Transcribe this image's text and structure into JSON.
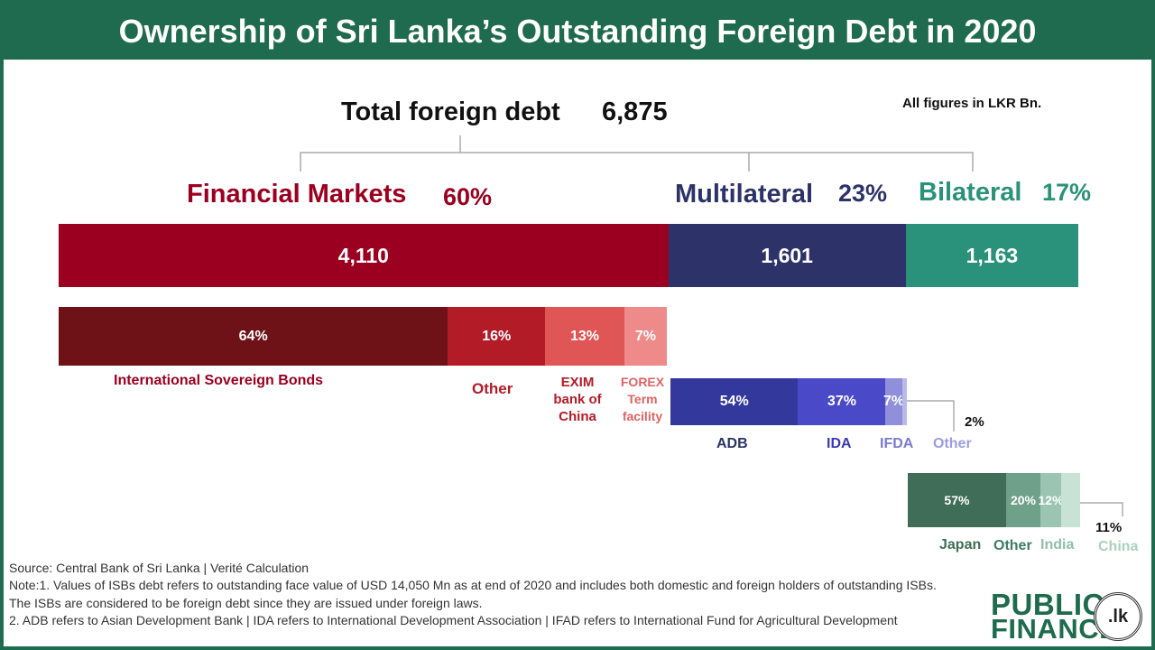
{
  "title": "Ownership of Sri Lanka’s Outstanding Foreign Debt in 2020",
  "units_note": "All figures in LKR Bn.",
  "total": {
    "label": "Total foreign debt",
    "value": "6,875"
  },
  "colors": {
    "header": "#1f6b4f",
    "financial": "#9b0020",
    "multilateral": "#2d3369",
    "bilateral": "#2a927a"
  },
  "chart_data": {
    "type": "bar",
    "total": {
      "label": "Total foreign debt",
      "value": 6875
    },
    "categories": [
      {
        "name": "Financial Markets",
        "share_label": "60%",
        "value": 4110,
        "value_label": "4,110",
        "color": "#9b0020"
      },
      {
        "name": "Multilateral",
        "share_label": "23%",
        "value": 1601,
        "value_label": "1,601",
        "color": "#2d3369"
      },
      {
        "name": "Bilateral",
        "share_label": "17%",
        "value": 1163,
        "value_label": "1,163",
        "color": "#2a927a"
      }
    ],
    "breakdowns": [
      {
        "parent": "Financial Markets",
        "segments": [
          {
            "name": "International Sovereign Bonds",
            "value": 64,
            "label": "64%",
            "color": "#6e1217",
            "text_color": "#9b0020"
          },
          {
            "name": "Other",
            "value": 16,
            "label": "16%",
            "color": "#b31c26",
            "text_color": "#b31c26"
          },
          {
            "name": "EXIM bank of China",
            "value": 13,
            "label": "13%",
            "color": "#e05555",
            "text_color": "#b31c26"
          },
          {
            "name": "FOREX Term facility",
            "value": 7,
            "label": "7%",
            "color": "#ee8a8a",
            "text_color": "#e06262"
          }
        ]
      },
      {
        "parent": "Multilateral",
        "segments": [
          {
            "name": "ADB",
            "value": 54,
            "label": "54%",
            "color": "#33399c",
            "text_color": "#2d3369"
          },
          {
            "name": "IDA",
            "value": 37,
            "label": "37%",
            "color": "#4a49c8",
            "text_color": "#3a3ab5"
          },
          {
            "name": "IFDA",
            "value": 7,
            "label": "7%",
            "color": "#8f8fdc",
            "text_color": "#7a7ad0"
          },
          {
            "name": "Other",
            "value": 2,
            "label": "2%",
            "color": "#b9b9ea",
            "text_color": "#9c9ce0"
          }
        ]
      },
      {
        "parent": "Bilateral",
        "segments": [
          {
            "name": "Japan",
            "value": 57,
            "label": "57%",
            "color": "#406d58",
            "text_color": "#406d58"
          },
          {
            "name": "Other",
            "value": 20,
            "label": "20%",
            "color": "#6fa08a",
            "text_color": "#3f7c62"
          },
          {
            "name": "India",
            "value": 12,
            "label": "12%",
            "color": "#9bc5b2",
            "text_color": "#8fbfa8"
          },
          {
            "name": "China",
            "value": 11,
            "label": "11%",
            "color": "#c8e2d6",
            "text_color": "#a9d2c0"
          }
        ]
      }
    ]
  },
  "notes": {
    "source": "Source: Central Bank of Sri Lanka | Verité Calculation",
    "note1": "Note:1. Values of ISBs debt refers to outstanding face value of USD 14,050 Mn as at end of 2020 and includes both domestic and foreign   holders of outstanding ISBs. The ISBs are considered to be foreign debt since they are issued under foreign laws.",
    "note2": "2. ADB refers to Asian Development Bank | IDA refers to International Development Association |  IFAD refers to    International Fund for Agricultural Development"
  },
  "logo": {
    "line1": "PUBLIC",
    "line2": "FINANCE",
    "badge": ".lk"
  }
}
